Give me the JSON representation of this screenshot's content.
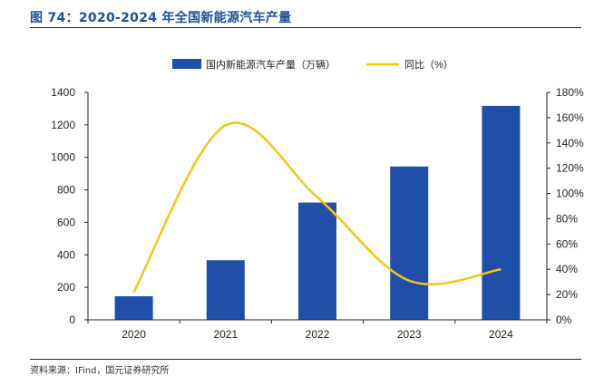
{
  "figure": {
    "title": "图 74：2020-2024 年全国新能源汽车产量",
    "source": "资料来源：IFind，国元证券研究所"
  },
  "colors": {
    "bar": "#1f4fa8",
    "line": "#f5c518",
    "title": "#1f4e9a",
    "axis": "#222222"
  },
  "chart_data": {
    "type": "bar",
    "categories": [
      "2020",
      "2021",
      "2022",
      "2023",
      "2024"
    ],
    "series": [
      {
        "name": "国内新能源汽车产量（万辆）",
        "type": "bar",
        "axis": "left",
        "values": [
          145,
          367,
          722,
          944,
          1317
        ]
      },
      {
        "name": "同比（%）",
        "type": "line",
        "axis": "right",
        "smooth": true,
        "values": [
          22,
          154,
          97,
          31,
          40
        ]
      }
    ],
    "y_left": {
      "min": 0,
      "max": 1400,
      "ticks": [
        "0",
        "200",
        "400",
        "600",
        "800",
        "1000",
        "1200",
        "1400"
      ]
    },
    "y_right": {
      "min": 0,
      "max": 180,
      "ticks": [
        "0%",
        "20%",
        "40%",
        "60%",
        "80%",
        "100%",
        "120%",
        "140%",
        "160%",
        "180%"
      ]
    },
    "legend_position": "top",
    "grid": false
  }
}
